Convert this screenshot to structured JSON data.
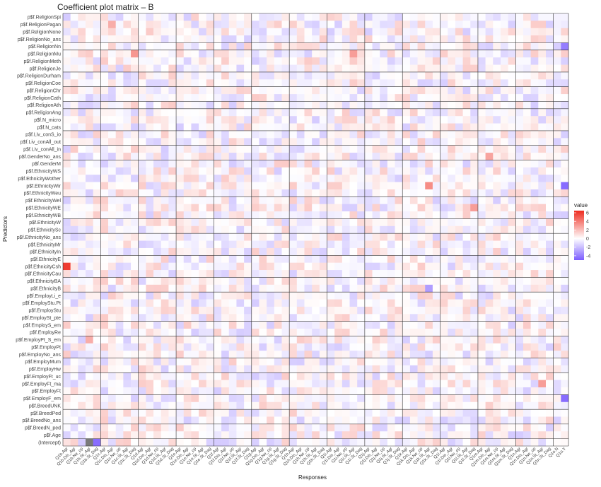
{
  "chart_data": {
    "type": "heatmap",
    "title": "Coefficient plot matrix – B",
    "xlabel": "Responses",
    "ylabel": "Predictors",
    "legend": {
      "title": "value",
      "ticks": [
        6,
        4,
        2,
        0,
        -2,
        -4
      ],
      "low_color": "#7b5cff",
      "mid_color": "#ffffff",
      "high_color": "#ee2b1f",
      "range": [
        -5,
        6.5
      ]
    },
    "predictors": [
      "p$f.ReligionSpi",
      "p$f.ReligionPagan",
      "p$f.ReligionNone",
      "p$f.ReligionNo_ans",
      "p$f.ReligionNn",
      "p$f.ReligionMu",
      "p$f.ReligionMeth",
      "p$f.ReligionJe",
      "p$f.ReligionDurham",
      "p$f.ReligionCoe",
      "p$f.ReligionChr",
      "p$f.ReligionCath",
      "p$f.ReligionAth",
      "p$f.ReligionAng",
      "p$f.N_micro",
      "p$f.N_cats",
      "p$f.Liv_conS_io",
      "p$f.Liv_conAll_out",
      "p$f.Liv_conAll_in",
      "p$f.GenderNo_ans",
      "p$f.GenderM",
      "p$f.EthnicityWS",
      "p$f.EthnicityWother",
      "p$f.EthnicityWir",
      "p$f.EthnicityWeu",
      "p$f.EthnicityWel",
      "p$f.EthnicityWE",
      "p$f.EthnicityWB",
      "p$f.EthnicityW",
      "p$f.EthnicitySc",
      "p$f.EthnicityNo_ans",
      "p$f.EthnicityMr",
      "p$f.EthnicityIn",
      "p$f.EthnicityE",
      "p$f.EthnicityCsh",
      "p$f.EthnicityCau",
      "p$f.EthnicityBA",
      "p$f.EthnicityB",
      "p$f.EmployLi_e",
      "p$f.EmployStu.Pt",
      "p$f.EmployStu",
      "p$f.EmploySt_pte",
      "p$f.EmployS_em",
      "p$f.EmployRe",
      "p$f.EmployPt_S_em",
      "p$f.EmployPt",
      "p$f.EmployNo_ans",
      "p$f.EmployMum",
      "p$f.EmployHw",
      "p$f.EmployFt_uc",
      "p$f.EmployFt_ma",
      "p$f.EmployFt",
      "p$f.EmployF_em",
      "p$f.BreedUNK",
      "p$f.BreedPed",
      "p$f.BreedNo_ans",
      "p$f.BreedN_ped",
      "p$f.Age",
      "(Intercept)"
    ],
    "responses": [
      "Q1b.Agr",
      "Q1b.Dis_Agr",
      "Q1b.Ne_op",
      "Q1b.St_Agr",
      "Q1b.St_Dag",
      "Q1c.Agr",
      "Q1c.Dis_Agr",
      "Q1c.Ne_op",
      "Q1c.St_Agr",
      "Q1c.St_Dag",
      "Q1d.Agr",
      "Q1d.Dis_Agr",
      "Q1d.Ne_op",
      "Q1d.St_Agr",
      "Q1d.St_Dag",
      "Q1e.Agr",
      "Q1e.Dis_Agr",
      "Q1e.Ne_op",
      "Q1e.St_Agr",
      "Q1e.St_Dag",
      "Q1f.Agr",
      "Q1f.Dis_Agr",
      "Q1f.Ne_op",
      "Q1f.St_Agr",
      "Q1f.St_Dag",
      "Q1g.Agr",
      "Q1g.Dis_Agr",
      "Q1g.Ne_op",
      "Q1g.St_Agr",
      "Q1g.St_Dag",
      "Q1h.Agr",
      "Q1h.Dis_Agr",
      "Q1h.Ne_op",
      "Q1h.St_Agr",
      "Q1h.St_Dag",
      "Q1i.Agr",
      "Q1i.Dis_Agr",
      "Q1i.Ne_op",
      "Q1i.St_Agr",
      "Q1i.St_Dag",
      "Q1j.Agr",
      "Q1j.Dis_Agr",
      "Q1j.Ne_op",
      "Q1j.St_Agr",
      "Q1j.St_Dag",
      "Q1k.Agr",
      "Q1k.Dis_Agr",
      "Q1k.Ne_op",
      "Q1k.St_Agr",
      "Q1k.St_Dag",
      "Q1l.Agr",
      "Q1l.Dis_Agr",
      "Q1l.Ne_op",
      "Q1l.St_Agr",
      "Q1l.St_Dag",
      "Q1m.Agr",
      "Q1m.Dis_Agr",
      "Q1m.Ne_op",
      "Q1m.St_Agr",
      "Q1m.St_Dag",
      "Q1n.Agr",
      "Q1n.Dis_Agr",
      "Q1n.Ne_op",
      "Q1n.St_Agr",
      "Q1n.St_Dag",
      "Q1o.N",
      "Q1o.Y"
    ],
    "separators": {
      "rows_after": [
        4,
        5,
        8,
        10,
        12,
        13,
        16,
        18,
        20,
        25,
        28,
        30,
        33,
        36,
        38,
        42,
        44,
        47,
        49,
        52,
        54,
        56,
        58
      ],
      "cols_after": [
        5,
        10,
        15,
        20,
        25,
        30,
        35,
        40,
        45,
        50,
        55,
        60,
        65
      ]
    },
    "values_note": "Cell values are estimated from the colour scale; sparse highlights listed below.",
    "highlights": [
      {
        "row": "p$f.EthnicityCsh",
        "col": "Q1b.Agr",
        "value": 6.0
      },
      {
        "row": "(Intercept)",
        "col": "Q1b.St_Agr",
        "value": null
      },
      {
        "row": "(Intercept)",
        "col": "Q1b.St_Dag",
        "value": -4.5
      },
      {
        "row": "p$f.ReligionMu",
        "col": "Q1c.St_Dag",
        "value": 3.2
      },
      {
        "row": "p$f.ReligionMu",
        "col": "Q1i.St_Agr",
        "value": 3.0
      },
      {
        "row": "p$f.ReligionPagan",
        "col": "Q1c.Dis_Agr",
        "value": 2.5
      },
      {
        "row": "p$f.EthnicityWir",
        "col": "Q1k.St_Agr",
        "value": 3.5
      },
      {
        "row": "p$f.EthnicityWE",
        "col": "Q1l.St_Dag",
        "value": 3.0
      },
      {
        "row": "p$f.EthnicityWir",
        "col": "Q1o.Y",
        "value": -4.5
      },
      {
        "row": "p$f.ReligionNn",
        "col": "Q1o.Y",
        "value": -4.0
      },
      {
        "row": "p$f.EmployF_em",
        "col": "Q1o.Y",
        "value": -4.5
      },
      {
        "row": "p$f.EmployFt_ma",
        "col": "Q1n.St_Agr",
        "value": 3.0
      },
      {
        "row": "p$f.EmployPt_S_em",
        "col": "Q1b.St_Agr",
        "value": 2.5
      },
      {
        "row": "p$f.EthnicityB",
        "col": "Q1k.St_Agr",
        "value": -3.0
      },
      {
        "row": "p$f.GenderNo_ans",
        "col": "Q1m.Dis_Agr",
        "value": 2.8
      }
    ]
  }
}
